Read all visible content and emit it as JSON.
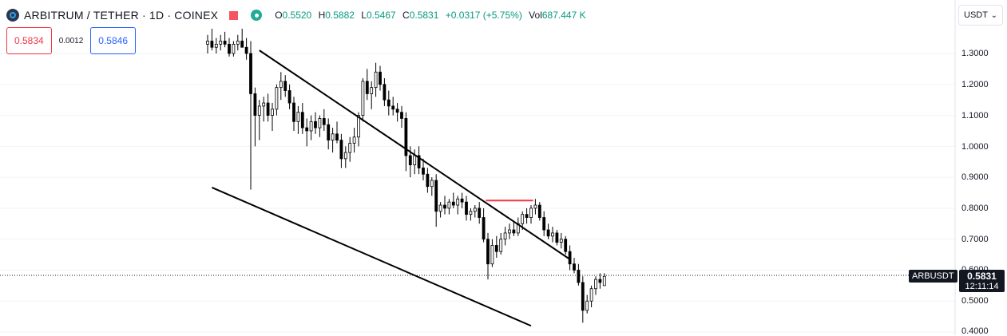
{
  "legend": {
    "title": "ARBITRUM / TETHER · 1D · COINEX",
    "ohlc": [
      {
        "label": "O",
        "value": "0.5520"
      },
      {
        "label": "H",
        "value": "0.5882"
      },
      {
        "label": "L",
        "value": "0.5467"
      },
      {
        "label": "C",
        "value": "0.5831"
      }
    ],
    "change": "+0.0317 (+5.75%)",
    "volume_label": "Vol",
    "volume_value": "687.447 K"
  },
  "trade": {
    "sell_price": "0.5834",
    "spread": "0.0012",
    "buy_price": "0.5846"
  },
  "currency": {
    "label": "USDT"
  },
  "price_axis": {
    "ticks": [
      "1.3000",
      "1.2000",
      "1.1000",
      "1.0000",
      "0.9000",
      "0.8000",
      "0.7000",
      "0.6000",
      "0.5000",
      "0.4000"
    ],
    "symbol_badge": "ARBUSDT",
    "current_price": "0.5831",
    "countdown": "12:11:14"
  },
  "chart_data": {
    "type": "candlestick",
    "ylim": [
      0.4,
      1.3
    ],
    "last_price": 0.5831,
    "colors": {
      "candle": "#000000",
      "trendline": "#000000",
      "horizontal_line": "#f23645"
    },
    "candles": [
      [
        1.33,
        1.36,
        1.3,
        1.34
      ],
      [
        1.34,
        1.38,
        1.31,
        1.32
      ],
      [
        1.32,
        1.35,
        1.3,
        1.33
      ],
      [
        1.33,
        1.36,
        1.31,
        1.34
      ],
      [
        1.34,
        1.37,
        1.32,
        1.33
      ],
      [
        1.33,
        1.35,
        1.29,
        1.3
      ],
      [
        1.3,
        1.34,
        1.29,
        1.33
      ],
      [
        1.33,
        1.36,
        1.31,
        1.34
      ],
      [
        1.34,
        1.38,
        1.32,
        1.32
      ],
      [
        1.32,
        1.35,
        1.28,
        1.3
      ],
      [
        1.3,
        1.34,
        0.86,
        1.17
      ],
      [
        1.17,
        1.19,
        1.0,
        1.1
      ],
      [
        1.1,
        1.15,
        1.02,
        1.13
      ],
      [
        1.13,
        1.16,
        1.08,
        1.14
      ],
      [
        1.14,
        1.17,
        1.08,
        1.1
      ],
      [
        1.1,
        1.14,
        1.05,
        1.12
      ],
      [
        1.12,
        1.2,
        1.1,
        1.19
      ],
      [
        1.19,
        1.24,
        1.15,
        1.21
      ],
      [
        1.21,
        1.23,
        1.16,
        1.18
      ],
      [
        1.18,
        1.2,
        1.12,
        1.14
      ],
      [
        1.14,
        1.16,
        1.05,
        1.08
      ],
      [
        1.08,
        1.13,
        1.04,
        1.11
      ],
      [
        1.11,
        1.14,
        1.04,
        1.06
      ],
      [
        1.06,
        1.09,
        1.0,
        1.05
      ],
      [
        1.05,
        1.1,
        1.02,
        1.08
      ],
      [
        1.08,
        1.11,
        1.04,
        1.06
      ],
      [
        1.06,
        1.1,
        1.03,
        1.09
      ],
      [
        1.09,
        1.12,
        1.05,
        1.07
      ],
      [
        1.07,
        1.09,
        0.99,
        1.02
      ],
      [
        1.02,
        1.06,
        0.98,
        1.04
      ],
      [
        1.04,
        1.08,
        1.01,
        1.02
      ],
      [
        1.02,
        1.04,
        0.93,
        0.96
      ],
      [
        0.96,
        1.0,
        0.93,
        0.98
      ],
      [
        0.98,
        1.03,
        0.95,
        1.01
      ],
      [
        1.01,
        1.06,
        0.98,
        1.03
      ],
      [
        1.03,
        1.11,
        1.0,
        1.1
      ],
      [
        1.1,
        1.22,
        1.08,
        1.21
      ],
      [
        1.21,
        1.25,
        1.15,
        1.17
      ],
      [
        1.17,
        1.21,
        1.12,
        1.19
      ],
      [
        1.19,
        1.27,
        1.16,
        1.24
      ],
      [
        1.24,
        1.26,
        1.18,
        1.2
      ],
      [
        1.2,
        1.22,
        1.13,
        1.15
      ],
      [
        1.15,
        1.18,
        1.1,
        1.13
      ],
      [
        1.13,
        1.16,
        1.1,
        1.12
      ],
      [
        1.12,
        1.14,
        1.08,
        1.11
      ],
      [
        1.11,
        1.13,
        1.06,
        1.09
      ],
      [
        1.09,
        1.11,
        0.92,
        0.97
      ],
      [
        0.97,
        1.0,
        0.9,
        0.94
      ],
      [
        0.94,
        0.99,
        0.91,
        0.97
      ],
      [
        0.97,
        1.0,
        0.91,
        0.93
      ],
      [
        0.93,
        0.96,
        0.89,
        0.91
      ],
      [
        0.91,
        0.93,
        0.85,
        0.87
      ],
      [
        0.87,
        0.9,
        0.84,
        0.89
      ],
      [
        0.89,
        0.91,
        0.74,
        0.79
      ],
      [
        0.79,
        0.82,
        0.77,
        0.81
      ],
      [
        0.81,
        0.84,
        0.78,
        0.8
      ],
      [
        0.8,
        0.83,
        0.78,
        0.82
      ],
      [
        0.82,
        0.85,
        0.8,
        0.81
      ],
      [
        0.81,
        0.84,
        0.78,
        0.83
      ],
      [
        0.83,
        0.85,
        0.8,
        0.82
      ],
      [
        0.82,
        0.84,
        0.76,
        0.78
      ],
      [
        0.78,
        0.8,
        0.76,
        0.79
      ],
      [
        0.79,
        0.81,
        0.77,
        0.8
      ],
      [
        0.8,
        0.82,
        0.75,
        0.77
      ],
      [
        0.77,
        0.8,
        0.69,
        0.7
      ],
      [
        0.7,
        0.72,
        0.57,
        0.62
      ],
      [
        0.62,
        0.7,
        0.61,
        0.68
      ],
      [
        0.68,
        0.71,
        0.64,
        0.66
      ],
      [
        0.66,
        0.72,
        0.65,
        0.7
      ],
      [
        0.7,
        0.74,
        0.68,
        0.72
      ],
      [
        0.72,
        0.75,
        0.7,
        0.73
      ],
      [
        0.73,
        0.76,
        0.71,
        0.72
      ],
      [
        0.72,
        0.77,
        0.71,
        0.75
      ],
      [
        0.75,
        0.79,
        0.73,
        0.78
      ],
      [
        0.78,
        0.8,
        0.75,
        0.77
      ],
      [
        0.77,
        0.81,
        0.75,
        0.8
      ],
      [
        0.8,
        0.83,
        0.78,
        0.81
      ],
      [
        0.81,
        0.82,
        0.76,
        0.77
      ],
      [
        0.77,
        0.79,
        0.71,
        0.73
      ],
      [
        0.73,
        0.75,
        0.7,
        0.71
      ],
      [
        0.71,
        0.74,
        0.69,
        0.72
      ],
      [
        0.72,
        0.73,
        0.68,
        0.69
      ],
      [
        0.69,
        0.72,
        0.67,
        0.7
      ],
      [
        0.7,
        0.71,
        0.65,
        0.66
      ],
      [
        0.66,
        0.68,
        0.6,
        0.62
      ],
      [
        0.62,
        0.64,
        0.59,
        0.6
      ],
      [
        0.6,
        0.62,
        0.55,
        0.56
      ],
      [
        0.56,
        0.58,
        0.43,
        0.47
      ],
      [
        0.47,
        0.52,
        0.46,
        0.5
      ],
      [
        0.5,
        0.55,
        0.48,
        0.54
      ],
      [
        0.54,
        0.58,
        0.52,
        0.57
      ],
      [
        0.57,
        0.59,
        0.54,
        0.56
      ],
      [
        0.55,
        0.59,
        0.55,
        0.58
      ]
    ],
    "trendlines": [
      {
        "from": [
          1,
          0.867
        ],
        "to": [
          75,
          0.42
        ]
      },
      {
        "from": [
          12,
          1.31
        ],
        "to": [
          84,
          0.635
        ]
      }
    ],
    "horizontal_segment": {
      "y": 0.825,
      "x_from": 64.5,
      "x_to": 75.5
    }
  }
}
